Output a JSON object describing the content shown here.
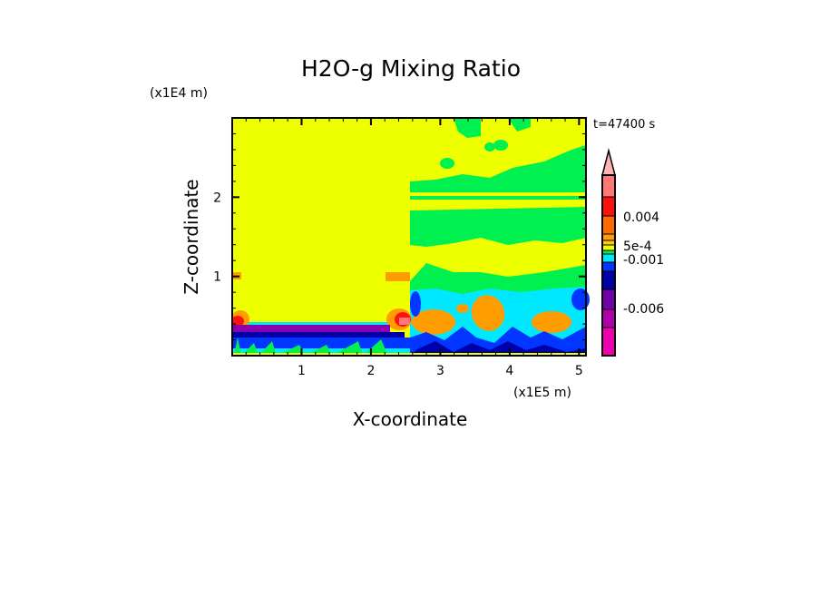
{
  "chart_data": {
    "type": "heatmap",
    "title": "H2O-g Mixing Ratio",
    "xlabel": "X-coordinate",
    "ylabel": "Z-coordinate",
    "x_unit": "(x1E5 m)",
    "y_unit": "(x1E4 m)",
    "time_label": "t=47400 s",
    "xlim": [
      0,
      5.1
    ],
    "ylim": [
      0,
      3.0
    ],
    "x_ticks": [
      "1",
      "2",
      "3",
      "4",
      "5"
    ],
    "x_tick_values": [
      1,
      2,
      3,
      4,
      5
    ],
    "y_ticks": [
      "1",
      "2"
    ],
    "y_tick_values": [
      1,
      2
    ],
    "colorbar": {
      "extend": "max",
      "arrow_color": "#ffb4b4",
      "colors_top_to_bottom": [
        "#ff7878",
        "#ff1010",
        "#ff6a00",
        "#ff9c00",
        "#ffcc00",
        "#eeff00",
        "#00f050",
        "#00e8ff",
        "#0036ff",
        "#0000a8",
        "#7000a8",
        "#b000a8",
        "#ee00b0"
      ],
      "labels": [
        "0.004",
        "5e-4",
        "-0.001",
        "-0.006"
      ]
    },
    "field_colors": {
      "background": "#eeff00",
      "green": "#00f050",
      "cyan": "#00e8ff",
      "blue": "#0036ff",
      "dark_blue": "#0000a8",
      "purple": "#8a00aa",
      "orange": "#ff9c00",
      "red": "#ff1010",
      "salmon": "#ff7878"
    }
  }
}
